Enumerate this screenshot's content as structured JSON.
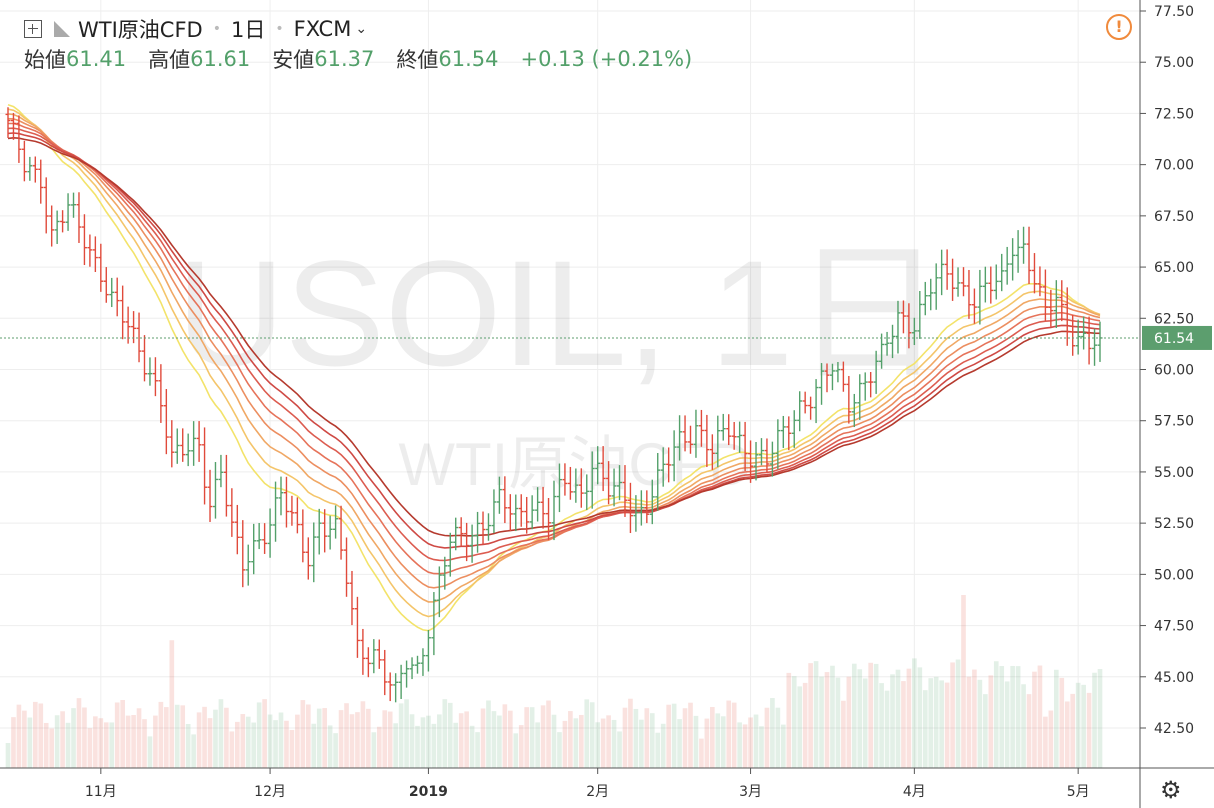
{
  "header": {
    "symbol": "WTI原油CFD",
    "interval": "1日",
    "exchange": "FXCM",
    "ohlc": [
      {
        "label": "始値",
        "value": "61.41"
      },
      {
        "label": "高値",
        "value": "61.61"
      },
      {
        "label": "安値",
        "value": "61.37"
      },
      {
        "label": "終値",
        "value": "61.54"
      }
    ],
    "change": "+0.13 (+0.21%)"
  },
  "watermark": {
    "main": "USOIL, 1日",
    "sub": "WTI原油CFD"
  },
  "price_label": "61.54",
  "icons": {
    "alert": "warning-circle-icon",
    "settings": "gear-icon",
    "add": "plus-square-icon",
    "flag": "flag-icon"
  },
  "colors": {
    "up": "#53a06a",
    "down": "#e04a3b",
    "price_tag": "#5c9e6e",
    "warn": "#f08a3c"
  },
  "chart_data": {
    "type": "candlestick",
    "y_axis_ticks": [
      "77.50",
      "75.00",
      "72.50",
      "70.00",
      "67.50",
      "65.00",
      "62.50",
      "60.00",
      "57.50",
      "55.00",
      "52.50",
      "50.00",
      "47.50",
      "45.00",
      "42.50"
    ],
    "ylim": [
      40.5,
      77.8
    ],
    "x_axis_ticks": [
      {
        "label": "11月",
        "day": 17
      },
      {
        "label": "12月",
        "day": 48
      },
      {
        "label": "2019",
        "day": 77
      },
      {
        "label": "2月",
        "day": 108
      },
      {
        "label": "3月",
        "day": 136
      },
      {
        "label": "4月",
        "day": 166
      },
      {
        "label": "5月",
        "day": 196
      }
    ],
    "last_price": 61.54,
    "close_anchors": [
      [
        0,
        71.9
      ],
      [
        3,
        70.0
      ],
      [
        6,
        69.5
      ],
      [
        8,
        66.5
      ],
      [
        11,
        67.8
      ],
      [
        14,
        66.5
      ],
      [
        17,
        64.8
      ],
      [
        19,
        63.3
      ],
      [
        22,
        62.0
      ],
      [
        26,
        60.0
      ],
      [
        28,
        58.5
      ],
      [
        30,
        55.4
      ],
      [
        32,
        56.0
      ],
      [
        35,
        56.5
      ],
      [
        37,
        53.5
      ],
      [
        39,
        55.0
      ],
      [
        41,
        52.0
      ],
      [
        43,
        50.5
      ],
      [
        45,
        51.5
      ],
      [
        48,
        52.5
      ],
      [
        50,
        53.8
      ],
      [
        53,
        52.0
      ],
      [
        55,
        51.0
      ],
      [
        57,
        52.5
      ],
      [
        60,
        52.0
      ],
      [
        62,
        49.8
      ],
      [
        64,
        46.5
      ],
      [
        67,
        46.2
      ],
      [
        69,
        45.0
      ],
      [
        71,
        44.0
      ],
      [
        73,
        45.8
      ],
      [
        75,
        45.5
      ],
      [
        77,
        47.5
      ],
      [
        79,
        49.5
      ],
      [
        81,
        51.5
      ],
      [
        84,
        52.0
      ],
      [
        87,
        52.5
      ],
      [
        90,
        53.5
      ],
      [
        93,
        52.8
      ],
      [
        96,
        53.5
      ],
      [
        99,
        52.8
      ],
      [
        102,
        54.5
      ],
      [
        105,
        54.0
      ],
      [
        107,
        55.5
      ],
      [
        110,
        54.0
      ],
      [
        113,
        53.8
      ],
      [
        115,
        53.0
      ],
      [
        117,
        53.5
      ],
      [
        120,
        55.0
      ],
      [
        123,
        56.5
      ],
      [
        126,
        57.3
      ],
      [
        129,
        56.0
      ],
      [
        132,
        57.0
      ],
      [
        134,
        56.5
      ],
      [
        136,
        56.0
      ],
      [
        139,
        55.5
      ],
      [
        142,
        56.8
      ],
      [
        145,
        58.3
      ],
      [
        148,
        59.0
      ],
      [
        151,
        60.0
      ],
      [
        154,
        58.5
      ],
      [
        157,
        59.5
      ],
      [
        160,
        60.5
      ],
      [
        163,
        62.5
      ],
      [
        166,
        62.4
      ],
      [
        169,
        64.0
      ],
      [
        172,
        64.6
      ],
      [
        175,
        64.0
      ],
      [
        177,
        63.5
      ],
      [
        180,
        64.0
      ],
      [
        182,
        64.2
      ],
      [
        184,
        66.2
      ],
      [
        186,
        66.0
      ],
      [
        188,
        64.5
      ],
      [
        190,
        62.5
      ],
      [
        192,
        63.5
      ],
      [
        194,
        62.0
      ],
      [
        196,
        61.8
      ],
      [
        198,
        61.2
      ],
      [
        200,
        61.54
      ]
    ],
    "volume_note": "histogram bars at bottom, relative scale"
  }
}
